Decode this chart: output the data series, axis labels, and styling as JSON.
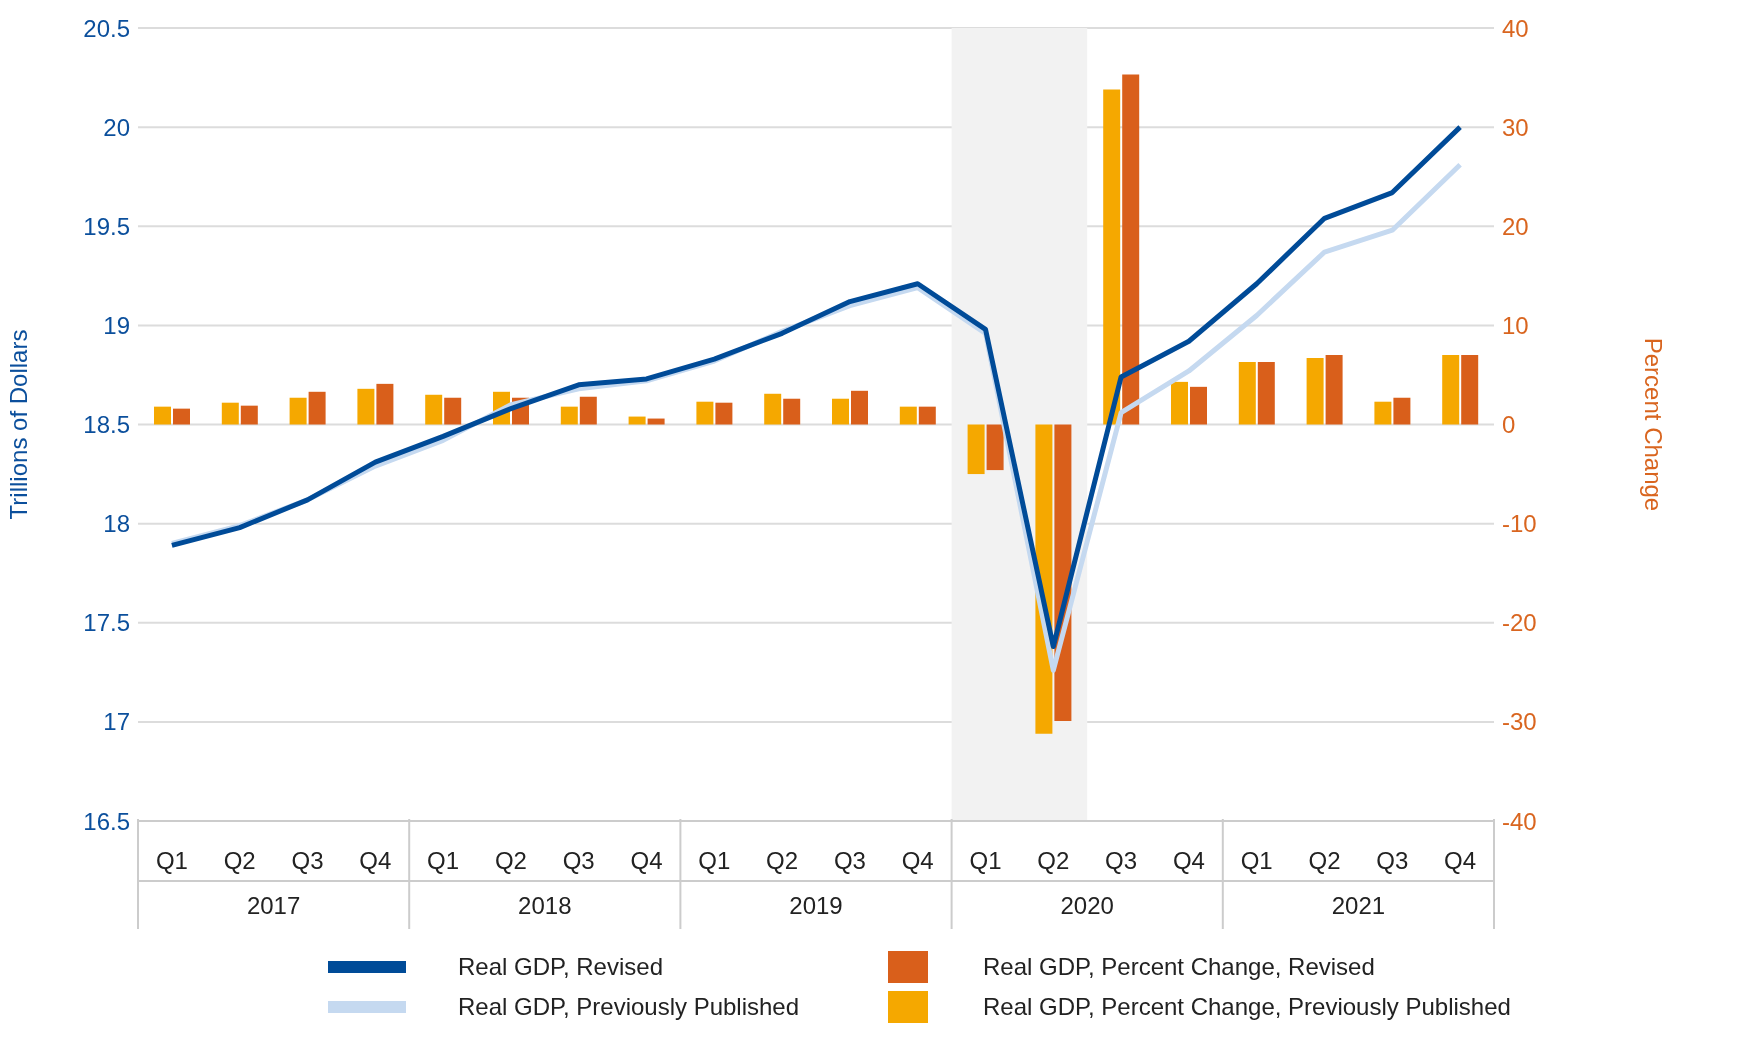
{
  "chart_data": {
    "type": "bar",
    "categories": [
      "Q1",
      "Q2",
      "Q3",
      "Q4",
      "Q1",
      "Q2",
      "Q3",
      "Q4",
      "Q1",
      "Q2",
      "Q3",
      "Q4",
      "Q1",
      "Q2",
      "Q3",
      "Q4",
      "Q1",
      "Q2",
      "Q3",
      "Q4"
    ],
    "annotations": [
      "2017",
      "2018",
      "2019",
      "2020",
      "2021"
    ],
    "ylabel": "Trillions of Dollars",
    "y2label": "Percent Change",
    "series": [
      {
        "name": "Real GDP, Percent Change, Previously Published",
        "axis": "y2",
        "color": "#f5a800",
        "values": [
          1.8,
          2.2,
          2.7,
          3.6,
          3.0,
          3.3,
          1.8,
          0.8,
          2.3,
          3.1,
          2.6,
          1.8,
          -5.0,
          -31.2,
          33.8,
          4.3,
          6.3,
          6.7,
          2.3,
          7.0
        ]
      },
      {
        "name": "Real GDP, Percent Change, Revised",
        "axis": "y2",
        "color": "#d95f1b",
        "values": [
          1.6,
          1.9,
          3.3,
          4.1,
          2.7,
          2.7,
          2.8,
          0.6,
          2.2,
          2.6,
          3.4,
          1.8,
          -4.6,
          -29.9,
          35.3,
          3.8,
          6.3,
          7.0,
          2.7,
          7.0
        ]
      },
      {
        "name": "Real GDP, Previously Published",
        "type": "line",
        "color": "#c5d9f0",
        "values": [
          17.9,
          17.99,
          18.12,
          18.29,
          18.42,
          18.6,
          18.68,
          18.72,
          18.82,
          18.97,
          19.1,
          19.19,
          18.96,
          17.26,
          18.56,
          18.77,
          19.05,
          19.37,
          19.48,
          19.81
        ]
      },
      {
        "name": "Real GDP, Revised",
        "type": "line",
        "color": "#004b98",
        "values": [
          17.89,
          17.98,
          18.12,
          18.31,
          18.44,
          18.58,
          18.7,
          18.73,
          18.83,
          18.96,
          19.12,
          19.21,
          18.98,
          17.38,
          18.74,
          18.92,
          19.21,
          19.54,
          19.67,
          20.0
        ]
      }
    ],
    "ylim": [
      16.5,
      20.5
    ],
    "yticks": [
      16.5,
      17,
      17.5,
      18,
      18.5,
      19,
      19.5,
      20,
      20.5
    ],
    "y2lim": [
      -40,
      40
    ],
    "y2ticks": [
      -40,
      -30,
      -20,
      -10,
      0,
      10,
      20,
      30,
      40
    ],
    "grid": "y",
    "legend": "bottom",
    "marker": "none",
    "line_style": "solid"
  }
}
